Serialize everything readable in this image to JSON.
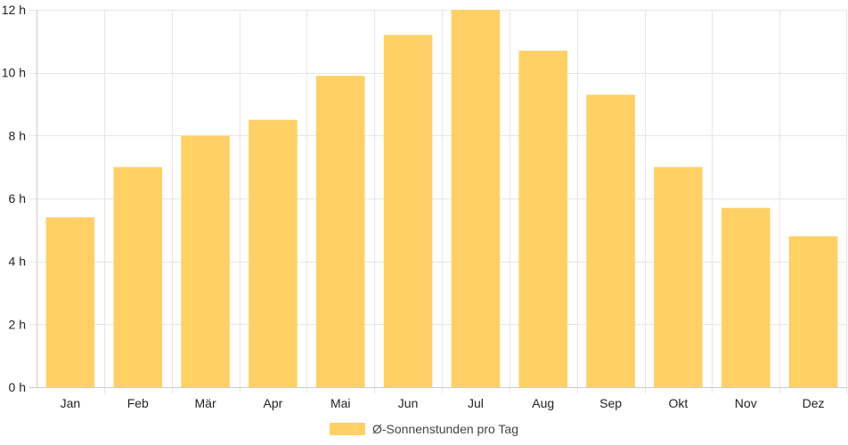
{
  "chart_data": {
    "type": "bar",
    "categories": [
      "Jan",
      "Feb",
      "Mär",
      "Apr",
      "Mai",
      "Jun",
      "Jul",
      "Aug",
      "Sep",
      "Okt",
      "Nov",
      "Dez"
    ],
    "series": [
      {
        "name": "Ø-Sonnenstunden pro Tag",
        "values": [
          5.4,
          7.0,
          8.0,
          8.5,
          9.9,
          11.2,
          12.0,
          10.7,
          9.3,
          7.0,
          5.7,
          4.8
        ],
        "color": "#fed066"
      }
    ],
    "y_ticks": [
      "0 h",
      "2 h",
      "4 h",
      "6 h",
      "8 h",
      "10 h",
      "12 h"
    ],
    "ylim": [
      0,
      12
    ],
    "grid": true,
    "legend_position": "bottom"
  }
}
